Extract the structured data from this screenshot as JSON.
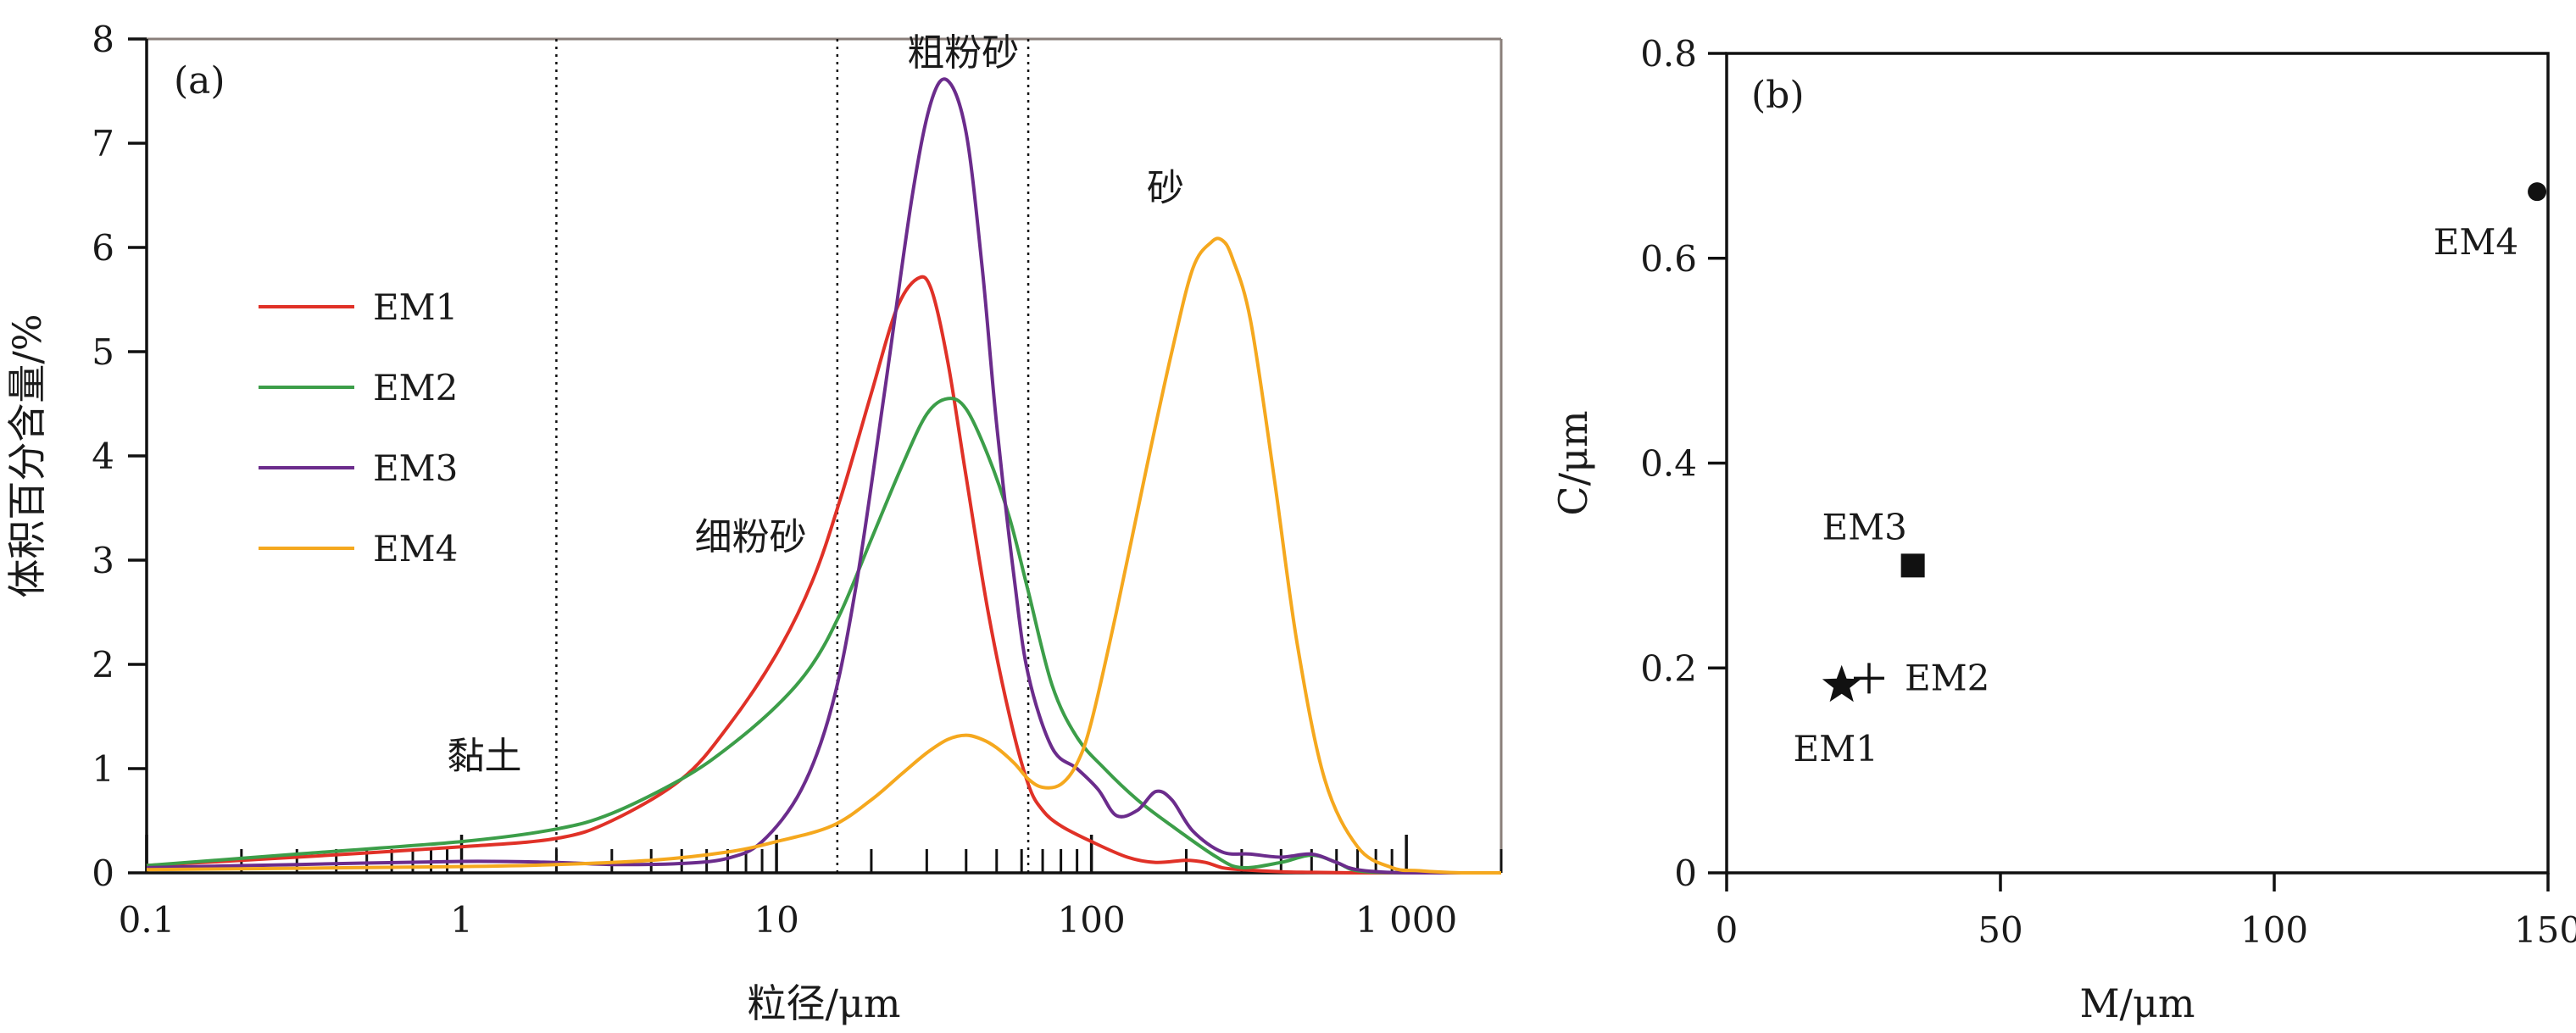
{
  "chart_data": [
    {
      "panel": "(a)",
      "type": "line",
      "xlabel": "粒径/μm",
      "ylabel": "体积百分含量/%",
      "xscale": "log",
      "xlim": [
        0.1,
        2000
      ],
      "ylim": [
        0,
        8
      ],
      "xticks": [
        0.1,
        1,
        10,
        100,
        1000
      ],
      "xtick_labels": [
        "0.1",
        "1",
        "10",
        "100",
        "1 000"
      ],
      "yticks": [
        0,
        1,
        2,
        3,
        4,
        5,
        6,
        7,
        8
      ],
      "ytick_labels": [
        "0",
        "1",
        "2",
        "3",
        "4",
        "5",
        "6",
        "7",
        "8"
      ],
      "grid": false,
      "legend": "left",
      "boundaries": [
        2,
        15.6,
        63
      ],
      "annotations": [
        {
          "text": "黏土",
          "x": 0.9,
          "y": 1.0
        },
        {
          "text": "细粉砂",
          "x": 5.5,
          "y": 3.1
        },
        {
          "text": "粗粉砂",
          "x": 26,
          "y": 7.75
        },
        {
          "text": "砂",
          "x": 150,
          "y": 6.45
        }
      ],
      "series": [
        {
          "name": "EM1",
          "color": "#e03127",
          "x": [
            0.1,
            0.3,
            1,
            2,
            3,
            5,
            7,
            10,
            13,
            16,
            20,
            24,
            28,
            31,
            35,
            40,
            47,
            55,
            63,
            70,
            80,
            100,
            130,
            160,
            200,
            230,
            260,
            300,
            400,
            500,
            700,
            1000,
            2000
          ],
          "y": [
            0.07,
            0.15,
            0.25,
            0.33,
            0.5,
            0.9,
            1.4,
            2.1,
            2.8,
            3.6,
            4.6,
            5.4,
            5.7,
            5.6,
            4.9,
            3.8,
            2.5,
            1.5,
            0.85,
            0.6,
            0.45,
            0.3,
            0.15,
            0.1,
            0.12,
            0.1,
            0.05,
            0.03,
            0.01,
            0.005,
            0.0,
            0.0,
            0.0
          ]
        },
        {
          "name": "EM2",
          "color": "#3c9e49",
          "x": [
            0.1,
            0.3,
            1,
            2,
            3,
            5,
            7,
            10,
            13,
            16,
            20,
            25,
            30,
            35,
            40,
            47,
            55,
            63,
            75,
            90,
            110,
            140,
            180,
            250,
            300,
            400,
            500,
            600,
            700,
            1000,
            2000
          ],
          "y": [
            0.07,
            0.18,
            0.3,
            0.42,
            0.57,
            0.9,
            1.2,
            1.6,
            2.0,
            2.5,
            3.2,
            3.9,
            4.4,
            4.55,
            4.45,
            4.0,
            3.4,
            2.7,
            1.8,
            1.3,
            1.0,
            0.7,
            0.45,
            0.15,
            0.05,
            0.1,
            0.17,
            0.1,
            0.02,
            0.0,
            0.0
          ]
        },
        {
          "name": "EM3",
          "color": "#6b2c8c",
          "x": [
            0.1,
            0.3,
            1,
            2,
            3,
            5,
            7,
            9,
            12,
            15,
            18,
            22,
            27,
            31,
            35,
            40,
            45,
            50,
            57,
            63,
            75,
            90,
            105,
            120,
            140,
            160,
            180,
            210,
            260,
            320,
            400,
            500,
            600,
            700,
            1000,
            2000
          ],
          "y": [
            0.05,
            0.08,
            0.11,
            0.1,
            0.08,
            0.09,
            0.14,
            0.3,
            0.8,
            1.6,
            2.8,
            4.6,
            6.5,
            7.4,
            7.6,
            7.1,
            5.8,
            4.3,
            2.8,
            1.9,
            1.2,
            1.0,
            0.8,
            0.55,
            0.6,
            0.78,
            0.7,
            0.4,
            0.2,
            0.18,
            0.15,
            0.18,
            0.1,
            0.03,
            0.0,
            0.0
          ]
        },
        {
          "name": "EM4",
          "color": "#f5a81e",
          "x": [
            0.1,
            1,
            2,
            4,
            7,
            10,
            15,
            20,
            25,
            30,
            35,
            40,
            45,
            50,
            57,
            63,
            70,
            80,
            90,
            100,
            120,
            150,
            180,
            210,
            240,
            260,
            280,
            320,
            380,
            450,
            550,
            700,
            900,
            1100,
            1500,
            2000
          ],
          "y": [
            0.03,
            0.06,
            0.08,
            0.12,
            0.2,
            0.3,
            0.45,
            0.7,
            0.95,
            1.15,
            1.28,
            1.32,
            1.28,
            1.2,
            1.05,
            0.9,
            0.82,
            0.85,
            1.05,
            1.45,
            2.5,
            3.9,
            5.0,
            5.8,
            6.05,
            6.07,
            5.9,
            5.3,
            3.8,
            2.2,
            0.9,
            0.25,
            0.05,
            0.02,
            0.0,
            0.0
          ]
        }
      ]
    },
    {
      "panel": "(b)",
      "type": "scatter",
      "xlabel": "M/μm",
      "ylabel": "C/μm",
      "xlim": [
        0,
        150
      ],
      "ylim": [
        0,
        0.8
      ],
      "xticks": [
        0,
        50,
        100,
        150
      ],
      "xtick_labels": [
        "0",
        "50",
        "100",
        "150"
      ],
      "yticks": [
        0,
        0.2,
        0.4,
        0.6,
        0.8
      ],
      "ytick_labels": [
        "0",
        "0.2",
        "0.4",
        "0.6",
        "0.8"
      ],
      "grid": false,
      "points": [
        {
          "label": "EM1",
          "x": 21,
          "y": 0.183,
          "marker": "star"
        },
        {
          "label": "EM2",
          "x": 26,
          "y": 0.19,
          "marker": "plus"
        },
        {
          "label": "EM3",
          "x": 34,
          "y": 0.3,
          "marker": "square"
        },
        {
          "label": "EM4",
          "x": 148,
          "y": 0.665,
          "marker": "circle"
        }
      ]
    }
  ]
}
